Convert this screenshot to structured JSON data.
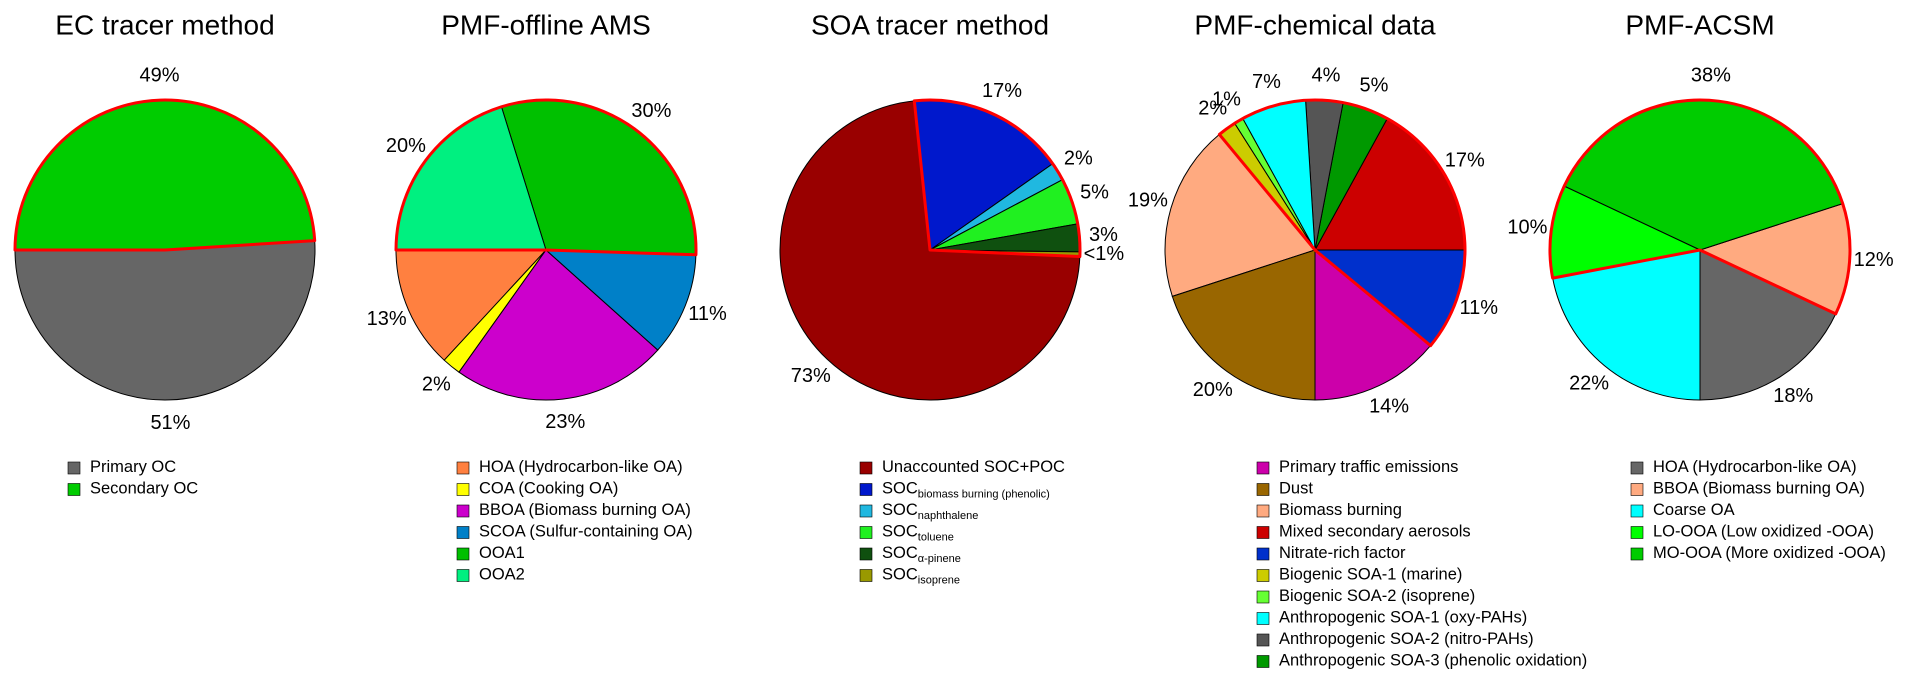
{
  "chart_data": [
    {
      "type": "pie",
      "title": "EC tracer method",
      "labels": [
        "Primary OC",
        "Secondary OC"
      ],
      "values": [
        51,
        49
      ],
      "value_labels": [
        "51%",
        "49%"
      ],
      "colors": [
        "#666666",
        "#00cc00"
      ],
      "outlined": [
        1
      ],
      "outline_color": "#ff0000"
    },
    {
      "type": "pie",
      "title": "PMF-offline AMS",
      "labels": [
        "HOA (Hydrocarbon-like OA)",
        "COA (Cooking OA)",
        "BBOA (Biomass burning OA)",
        "SCOA (Sulfur-containing OA)",
        "OOA1",
        "OOA2"
      ],
      "values": [
        13,
        2,
        23,
        11,
        30,
        20
      ],
      "value_labels": [
        "13%",
        "2%",
        "23%",
        "11%",
        "30%",
        "20%"
      ],
      "colors": [
        "#ff8040",
        "#ffff00",
        "#cc00cc",
        "#0080c8",
        "#00c000",
        "#00f080"
      ],
      "outlined": [
        4,
        5
      ],
      "outline_color": "#ff0000"
    },
    {
      "type": "pie",
      "title": "SOA tracer method",
      "labels": [
        "Unaccounted SOC+POC",
        "SOC",
        "SOC",
        "SOC",
        "SOC",
        "SOC"
      ],
      "label_subscripts": [
        null,
        "biomass burning (phenolic)",
        "naphthalene",
        "toluene",
        "α-pinene",
        "isoprene"
      ],
      "values": [
        73,
        17,
        2,
        5,
        3,
        0.5
      ],
      "value_labels": [
        "73%",
        "17%",
        "2%",
        "5%",
        "3%",
        "<1%"
      ],
      "colors": [
        "#990000",
        "#0018cc",
        "#20b8e0",
        "#20f020",
        "#0f500f",
        "#999900"
      ],
      "outlined": [
        1,
        2,
        3,
        4,
        5
      ],
      "outline_color": "#ff0000"
    },
    {
      "type": "pie",
      "title": "PMF-chemical data",
      "labels": [
        "Primary traffic emissions",
        "Dust",
        "Biomass burning",
        "Mixed secondary aerosols",
        "Nitrate-rich factor",
        "Biogenic SOA-1 (marine)",
        "Biogenic SOA-2 (isoprene)",
        "Anthropogenic SOA-1 (oxy-PAHs)",
        "Anthropogenic SOA-2 (nitro-PAHs)",
        "Anthropogenic SOA-3 (phenolic oxidation)"
      ],
      "values": [
        14,
        20,
        19,
        17,
        11,
        2,
        1,
        7,
        4,
        5
      ],
      "value_labels": [
        "14%",
        "20%",
        "19%",
        "17%",
        "11%",
        "2%",
        "1%",
        "7%",
        "4%",
        "5%"
      ],
      "colors": [
        "#cc00aa",
        "#996600",
        "#ffaa80",
        "#cc0000",
        "#0030cc",
        "#cccc00",
        "#66ff33",
        "#00ffff",
        "#555555",
        "#009900"
      ],
      "outlined": [
        3,
        4,
        5,
        6,
        7,
        8,
        9
      ],
      "outline_color": "#ff0000"
    },
    {
      "type": "pie",
      "title": "PMF-ACSM",
      "labels": [
        "HOA (Hydrocarbon-like OA)",
        "BBOA (Biomass burning OA)",
        "Coarse OA",
        "LO-OOA (Low oxidized -OOA)",
        "MO-OOA (More oxidized -OOA)"
      ],
      "values": [
        18,
        12,
        22,
        10,
        38
      ],
      "value_labels": [
        "18%",
        "12%",
        "22%",
        "10%",
        "38%"
      ],
      "colors": [
        "#666666",
        "#ffaa80",
        "#00ffff",
        "#00ff00",
        "#00cc00"
      ],
      "outlined": [
        1,
        3,
        4
      ],
      "outline_color": "#ff0000"
    }
  ]
}
